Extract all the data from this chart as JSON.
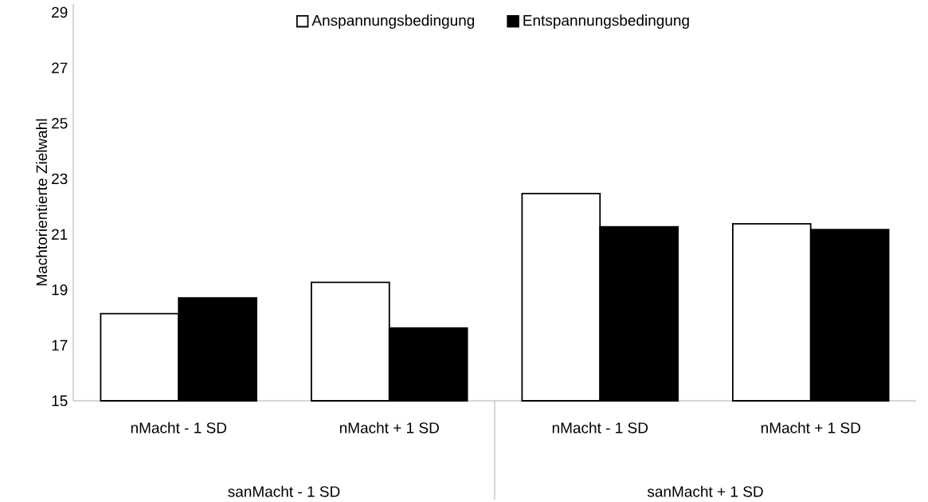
{
  "chart_data": {
    "type": "bar",
    "ylabel": "Machtorientierte Zielwahl",
    "categories": [
      "nMacht - 1 SD",
      "nMacht + 1 SD",
      "nMacht - 1 SD",
      "nMacht + 1 SD"
    ],
    "series": [
      {
        "name": "Anspannungsbedingung",
        "color": "#ffffff",
        "values": [
          18.14,
          19.27,
          22.47,
          21.38
        ]
      },
      {
        "name": "Entspannungsbedingung",
        "color": "#000000",
        "values": [
          18.71,
          17.62,
          21.27,
          21.17
        ]
      }
    ],
    "annotations": [
      "sanMacht - 1 SD",
      "sanMacht + 1 SD"
    ],
    "ylim": [
      15,
      29.3
    ],
    "yticks": [
      15,
      17,
      19,
      21,
      23,
      25,
      27,
      29
    ],
    "legend": "top"
  }
}
